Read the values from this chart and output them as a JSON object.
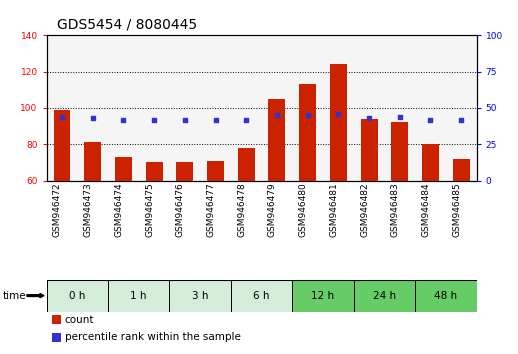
{
  "title": "GDS5454 / 8080445",
  "samples": [
    "GSM946472",
    "GSM946473",
    "GSM946474",
    "GSM946475",
    "GSM946476",
    "GSM946477",
    "GSM946478",
    "GSM946479",
    "GSM946480",
    "GSM946481",
    "GSM946482",
    "GSM946483",
    "GSM946484",
    "GSM946485"
  ],
  "count_values": [
    99,
    81,
    73,
    70,
    70,
    71,
    78,
    105,
    113,
    124,
    94,
    92,
    80,
    72
  ],
  "percentile_values": [
    44,
    43,
    42,
    42,
    42,
    42,
    42,
    45,
    45,
    46,
    43,
    44,
    42,
    42
  ],
  "ylim_left": [
    60,
    140
  ],
  "ylim_right": [
    0,
    100
  ],
  "yticks_left": [
    60,
    80,
    100,
    120,
    140
  ],
  "yticks_right": [
    0,
    25,
    50,
    75,
    100
  ],
  "bar_color": "#cc2200",
  "dot_color": "#3333cc",
  "bg_color": "#f5f5f5",
  "time_groups": [
    {
      "label": "0 h",
      "start": 0,
      "end": 1,
      "color": "#d4edda"
    },
    {
      "label": "1 h",
      "start": 2,
      "end": 3,
      "color": "#d4edda"
    },
    {
      "label": "3 h",
      "start": 4,
      "end": 5,
      "color": "#d4edda"
    },
    {
      "label": "6 h",
      "start": 6,
      "end": 7,
      "color": "#d4edda"
    },
    {
      "label": "12 h",
      "start": 8,
      "end": 9,
      "color": "#66cc66"
    },
    {
      "label": "24 h",
      "start": 10,
      "end": 11,
      "color": "#66cc66"
    },
    {
      "label": "48 h",
      "start": 12,
      "end": 13,
      "color": "#66cc66"
    }
  ],
  "legend_count_label": "count",
  "legend_pct_label": "percentile rank within the sample",
  "time_label": "time",
  "title_fontsize": 10,
  "tick_fontsize": 6.5,
  "label_fontsize": 7.5,
  "legend_fontsize": 7.5
}
